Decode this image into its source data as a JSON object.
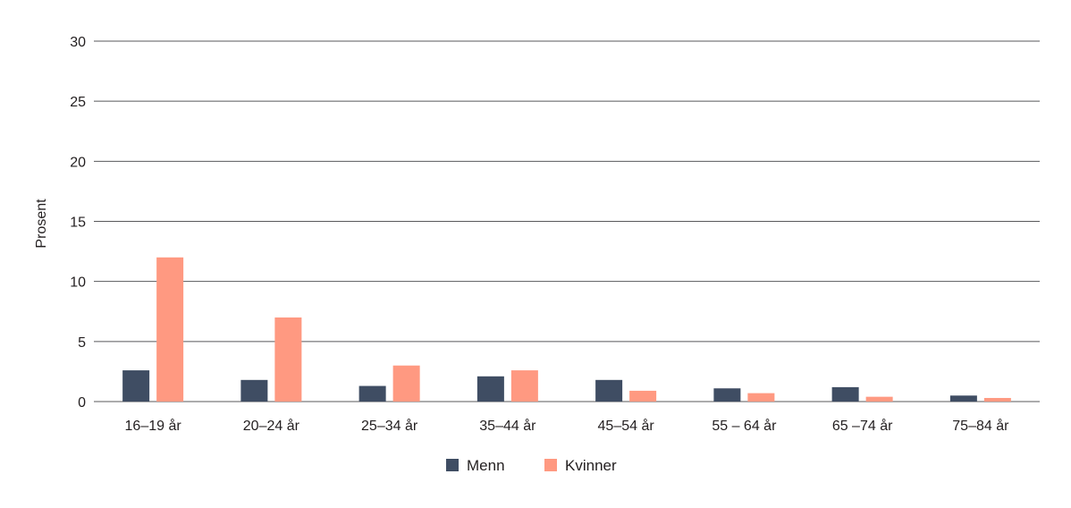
{
  "chart_data": {
    "type": "bar",
    "title": "",
    "xlabel": "",
    "ylabel": "Prosent",
    "ylim": [
      0,
      30
    ],
    "yticks": [
      0,
      5,
      10,
      15,
      20,
      25,
      30
    ],
    "grid": true,
    "legend_position": "bottom-center",
    "categories": [
      "16–19 år",
      "20–24 år",
      "25–34 år",
      "35–44 år",
      "45–54 år",
      "55 – 64 år",
      "65 –74 år",
      "75–84 år"
    ],
    "series": [
      {
        "name": "Menn",
        "color": "#3f4d63",
        "values": [
          2.6,
          1.8,
          1.3,
          2.1,
          1.8,
          1.1,
          1.2,
          0.5
        ]
      },
      {
        "name": "Kvinner",
        "color": "#ff9981",
        "values": [
          12.0,
          7.0,
          3.0,
          2.6,
          0.9,
          0.7,
          0.4,
          0.3
        ]
      }
    ]
  }
}
